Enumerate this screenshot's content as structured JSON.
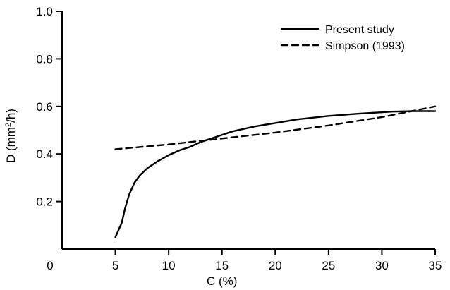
{
  "chart_data": {
    "type": "line",
    "xlabel": "C (%)",
    "ylabel_prefix": "D (mm",
    "ylabel_sup": "2",
    "ylabel_suffix": "/h)",
    "xlim": [
      0,
      35
    ],
    "ylim": [
      0,
      1.0
    ],
    "xticks": [
      0,
      5,
      10,
      15,
      20,
      25,
      30,
      35
    ],
    "xtick_labels": [
      "0",
      "5",
      "10",
      "15",
      "20",
      "25",
      "30",
      "35"
    ],
    "yticks": [
      0.2,
      0.4,
      0.6,
      0.8,
      1.0
    ],
    "ytick_labels": [
      "0.2",
      "0.4",
      "0.6",
      "0.8",
      "1.0"
    ],
    "grid": false,
    "legend_position": "top-right",
    "series": [
      {
        "name": "Present study",
        "style": "solid",
        "x": [
          5.0,
          5.3,
          5.6,
          5.9,
          6.3,
          6.8,
          7.3,
          8.0,
          9.0,
          10.0,
          11.0,
          12.0,
          13.0,
          14.0,
          15.0,
          16.0,
          18.0,
          20.0,
          22.0,
          25.0,
          28.0,
          31.0,
          33.0,
          35.0
        ],
        "y": [
          0.05,
          0.08,
          0.11,
          0.17,
          0.23,
          0.28,
          0.31,
          0.34,
          0.37,
          0.395,
          0.415,
          0.43,
          0.45,
          0.465,
          0.48,
          0.495,
          0.515,
          0.53,
          0.545,
          0.56,
          0.57,
          0.578,
          0.58,
          0.58
        ]
      },
      {
        "name": "Simpson (1993)",
        "style": "dashed",
        "x": [
          5.0,
          10.0,
          15.0,
          20.0,
          25.0,
          30.0,
          35.0
        ],
        "y": [
          0.42,
          0.44,
          0.465,
          0.49,
          0.52,
          0.555,
          0.6
        ]
      }
    ]
  }
}
